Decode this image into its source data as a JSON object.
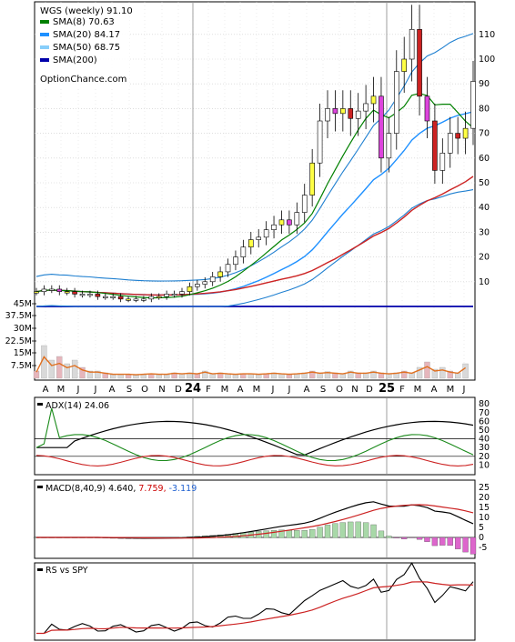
{
  "chart_data": [
    {
      "type": "line",
      "title": "WGS (weekly) 91.10",
      "legend": [
        {
          "label": "SMA(8) 70.63",
          "color": "#008000"
        },
        {
          "label": "SMA(20) 84.17",
          "color": "#1E90FF"
        },
        {
          "label": "SMA(50) 68.75",
          "color": "#87CEFA"
        },
        {
          "label": "SMA(200)",
          "color": "#0000AA"
        }
      ],
      "watermark": "OptionChance.com",
      "legend_position": "top-left",
      "price_axis_ticks": [
        "110",
        "100",
        "90",
        "80",
        "70",
        "60",
        "50",
        "40",
        "30",
        "20",
        "10"
      ],
      "volume_axis_ticks": [
        "45M",
        "37.5M",
        "30M",
        "22.5M",
        "15M",
        "7.5M"
      ],
      "x_tick_labels": [
        "A",
        "M",
        "J",
        "J",
        "A",
        "S",
        "O",
        "N",
        "D",
        "24",
        "F",
        "M",
        "A",
        "M",
        "J",
        "J",
        "A",
        "S",
        "O",
        "N",
        "D",
        "25",
        "F",
        "M",
        "A",
        "M",
        "J"
      ],
      "price_path_weekly": [
        6,
        7,
        7,
        6,
        6,
        5,
        5,
        5,
        4,
        4,
        4,
        3,
        3,
        3,
        3,
        4,
        4,
        5,
        5,
        6,
        8,
        9,
        10,
        12,
        14,
        17,
        20,
        24,
        27,
        28,
        31,
        33,
        35,
        33,
        38,
        45,
        58,
        75,
        80,
        78,
        80,
        76,
        79,
        82,
        85,
        60,
        70,
        95,
        100,
        112,
        85,
        75,
        55,
        62,
        70,
        68,
        72,
        91
      ],
      "sma8_end": 70.63,
      "sma20_end": 84.17,
      "sma50_end": 68.75
    },
    {
      "type": "line",
      "title": "ADX(14) 24.06",
      "y_ticks": [
        "80",
        "70",
        "60",
        "50",
        "40",
        "30",
        "20",
        "10"
      ],
      "grid_lines": [
        20,
        40
      ]
    },
    {
      "type": "line",
      "title_prefix": "MACD(8,40,9) 4.640,",
      "title_signal": "7.759,",
      "title_hist": "-3.119",
      "y_ticks": [
        "25",
        "20",
        "15",
        "10",
        "5",
        "0",
        "-5"
      ]
    },
    {
      "type": "line",
      "title": "RS vs SPY"
    }
  ]
}
